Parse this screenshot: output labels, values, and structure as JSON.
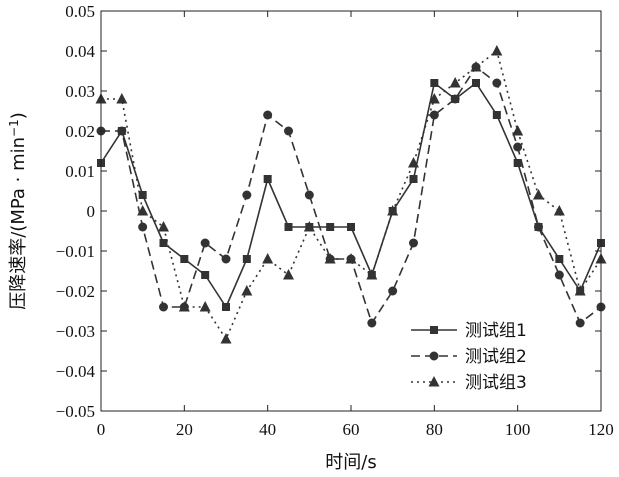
{
  "chart_data": {
    "type": "line",
    "xlabel": "时间/s",
    "ylabel_prefix": "压降速率/(MPa · min",
    "ylabel_sup": "−1",
    "ylabel_suffix": ")",
    "xlim": [
      0,
      120
    ],
    "ylim": [
      -0.05,
      0.05
    ],
    "x_ticks": [
      0,
      20,
      40,
      60,
      80,
      100,
      120
    ],
    "y_ticks": [
      -0.05,
      -0.04,
      -0.03,
      -0.02,
      -0.01,
      0,
      0.01,
      0.02,
      0.03,
      0.04,
      0.05
    ],
    "x_tick_labels": [
      "0",
      "20",
      "40",
      "60",
      "80",
      "100",
      "120"
    ],
    "y_tick_labels": [
      "−0.05",
      "−0.04",
      "−0.03",
      "−0.02",
      "−0.01",
      "0",
      "0.01",
      "0.02",
      "0.03",
      "0.04",
      "0.05"
    ],
    "grid": false,
    "legend_position": "bottom-right",
    "x": [
      0,
      5,
      10,
      15,
      20,
      25,
      30,
      35,
      40,
      45,
      50,
      55,
      60,
      65,
      70,
      75,
      80,
      85,
      90,
      95,
      100,
      105,
      110,
      115,
      120
    ],
    "series": [
      {
        "name": "测试组1",
        "marker": "square",
        "dash": "solid",
        "color": "#333333",
        "values": [
          0.012,
          0.02,
          0.004,
          -0.008,
          -0.012,
          -0.016,
          -0.024,
          -0.012,
          0.008,
          -0.004,
          -0.004,
          -0.004,
          -0.004,
          -0.016,
          0.0,
          0.008,
          0.032,
          0.028,
          0.032,
          0.024,
          0.012,
          -0.004,
          -0.012,
          -0.02,
          -0.008
        ]
      },
      {
        "name": "测试组2",
        "marker": "circle",
        "dash": "dashed",
        "color": "#333333",
        "values": [
          0.02,
          0.02,
          -0.004,
          -0.024,
          -0.024,
          -0.008,
          -0.012,
          0.004,
          0.024,
          0.02,
          0.004,
          -0.012,
          -0.012,
          -0.028,
          -0.02,
          -0.008,
          0.024,
          0.028,
          0.036,
          0.032,
          0.016,
          -0.004,
          -0.016,
          -0.028,
          -0.024
        ]
      },
      {
        "name": "测试组3",
        "marker": "triangle",
        "dash": "dotted",
        "color": "#333333",
        "values": [
          0.028,
          0.028,
          0.0,
          -0.004,
          -0.024,
          -0.024,
          -0.032,
          -0.02,
          -0.012,
          -0.016,
          -0.004,
          -0.012,
          -0.012,
          -0.016,
          0.0,
          0.012,
          0.028,
          0.032,
          0.036,
          0.04,
          0.02,
          0.004,
          0.0,
          -0.02,
          -0.012
        ]
      }
    ]
  }
}
